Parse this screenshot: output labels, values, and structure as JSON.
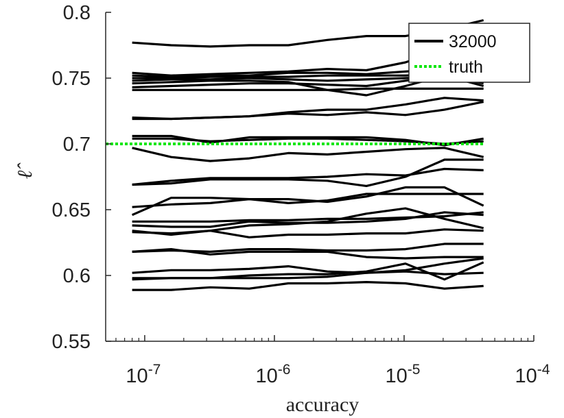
{
  "chart_data": {
    "type": "line",
    "xlabel": "accuracy",
    "ylabel": "ℓ̂",
    "x_scale": "log",
    "xlim": [
      5e-08,
      0.0001
    ],
    "ylim": [
      0.55,
      0.8
    ],
    "grid": false,
    "legend_position": "top-right",
    "legend": [
      "32000",
      "truth"
    ],
    "colors": {
      "series": "#000000",
      "truth": "#00e600",
      "axis": "#262626"
    },
    "x_ticks": [
      {
        "value": 1e-07,
        "base": "10",
        "exp": "-7"
      },
      {
        "value": 1e-06,
        "base": "10",
        "exp": "-6"
      },
      {
        "value": 1e-05,
        "base": "10",
        "exp": "-5"
      },
      {
        "value": 0.0001,
        "base": "10",
        "exp": "-4"
      }
    ],
    "y_ticks": [
      {
        "value": 0.55,
        "label": "0.55"
      },
      {
        "value": 0.6,
        "label": "0.6"
      },
      {
        "value": 0.65,
        "label": "0.65"
      },
      {
        "value": 0.7,
        "label": "0.7"
      },
      {
        "value": 0.75,
        "label": "0.75"
      },
      {
        "value": 0.8,
        "label": "0.8"
      }
    ],
    "x": [
      8e-08,
      1.6e-07,
      3.2e-07,
      6.4e-07,
      1.28e-06,
      2.56e-06,
      5.12e-06,
      1.024e-05,
      2.048e-05,
      4.096e-05
    ],
    "truth": 0.7,
    "series": [
      {
        "name": "32000",
        "values": [
          0.777,
          0.775,
          0.774,
          0.775,
          0.775,
          0.779,
          0.782,
          0.782,
          0.787,
          0.794
        ]
      },
      {
        "values": [
          0.754,
          0.752,
          0.753,
          0.754,
          0.755,
          0.757,
          0.756,
          0.762,
          0.772,
          0.781
        ]
      },
      {
        "values": [
          0.752,
          0.751,
          0.752,
          0.752,
          0.754,
          0.754,
          0.753,
          0.755,
          0.757,
          0.758
        ]
      },
      {
        "values": [
          0.75,
          0.75,
          0.751,
          0.751,
          0.751,
          0.752,
          0.752,
          0.752,
          0.753,
          0.753
        ]
      },
      {
        "values": [
          0.748,
          0.749,
          0.749,
          0.75,
          0.749,
          0.748,
          0.749,
          0.75,
          0.751,
          0.749
        ]
      },
      {
        "values": [
          0.746,
          0.747,
          0.748,
          0.748,
          0.747,
          0.741,
          0.737,
          0.744,
          0.752,
          0.746
        ]
      },
      {
        "values": [
          0.743,
          0.744,
          0.745,
          0.746,
          0.746,
          0.745,
          0.744,
          0.748,
          0.752,
          0.744
        ]
      },
      {
        "values": [
          0.741,
          0.741,
          0.741,
          0.741,
          0.741,
          0.741,
          0.742,
          0.742,
          0.742,
          0.742
        ]
      },
      {
        "values": [
          0.72,
          0.719,
          0.72,
          0.721,
          0.724,
          0.726,
          0.726,
          0.73,
          0.735,
          0.733
        ]
      },
      {
        "values": [
          0.719,
          0.719,
          0.72,
          0.721,
          0.723,
          0.722,
          0.724,
          0.722,
          0.726,
          0.732
        ]
      },
      {
        "values": [
          0.706,
          0.706,
          0.701,
          0.705,
          0.705,
          0.705,
          0.705,
          0.703,
          0.699,
          0.704
        ]
      },
      {
        "values": [
          0.704,
          0.704,
          0.702,
          0.703,
          0.704,
          0.704,
          0.703,
          0.702,
          0.7,
          0.702
        ]
      },
      {
        "values": [
          0.697,
          0.69,
          0.687,
          0.689,
          0.693,
          0.692,
          0.694,
          0.696,
          0.697,
          0.69
        ]
      },
      {
        "values": [
          0.669,
          0.672,
          0.674,
          0.674,
          0.674,
          0.675,
          0.677,
          0.676,
          0.681,
          0.68
        ]
      },
      {
        "values": [
          0.669,
          0.67,
          0.673,
          0.673,
          0.673,
          0.672,
          0.668,
          0.675,
          0.688,
          0.688
        ]
      },
      {
        "values": [
          0.646,
          0.659,
          0.659,
          0.658,
          0.658,
          0.656,
          0.66,
          0.667,
          0.667,
          0.653
        ]
      },
      {
        "values": [
          0.652,
          0.654,
          0.655,
          0.658,
          0.655,
          0.657,
          0.662,
          0.662,
          0.662,
          0.662
        ]
      },
      {
        "values": [
          0.641,
          0.641,
          0.641,
          0.642,
          0.642,
          0.643,
          0.643,
          0.644,
          0.645,
          0.648
        ]
      },
      {
        "values": [
          0.638,
          0.637,
          0.637,
          0.641,
          0.64,
          0.64,
          0.641,
          0.643,
          0.648,
          0.646
        ]
      },
      {
        "values": [
          0.634,
          0.631,
          0.634,
          0.638,
          0.639,
          0.641,
          0.647,
          0.651,
          0.643,
          0.636
        ]
      },
      {
        "values": [
          0.633,
          0.632,
          0.634,
          0.629,
          0.631,
          0.631,
          0.632,
          0.632,
          0.635,
          0.634
        ]
      },
      {
        "values": [
          0.618,
          0.619,
          0.618,
          0.62,
          0.62,
          0.619,
          0.619,
          0.62,
          0.624,
          0.624
        ]
      },
      {
        "values": [
          0.618,
          0.62,
          0.616,
          0.618,
          0.618,
          0.618,
          0.614,
          0.613,
          0.614,
          0.614
        ]
      },
      {
        "values": [
          0.602,
          0.604,
          0.604,
          0.605,
          0.607,
          0.603,
          0.602,
          0.604,
          0.609,
          0.613
        ]
      },
      {
        "values": [
          0.598,
          0.598,
          0.598,
          0.6,
          0.601,
          0.601,
          0.603,
          0.609,
          0.597,
          0.61
        ]
      },
      {
        "values": [
          0.589,
          0.589,
          0.591,
          0.59,
          0.594,
          0.594,
          0.595,
          0.594,
          0.59,
          0.592
        ]
      },
      {
        "values": [
          0.597,
          0.598,
          0.598,
          0.598,
          0.598,
          0.599,
          0.602,
          0.603,
          0.601,
          0.602
        ]
      }
    ]
  }
}
